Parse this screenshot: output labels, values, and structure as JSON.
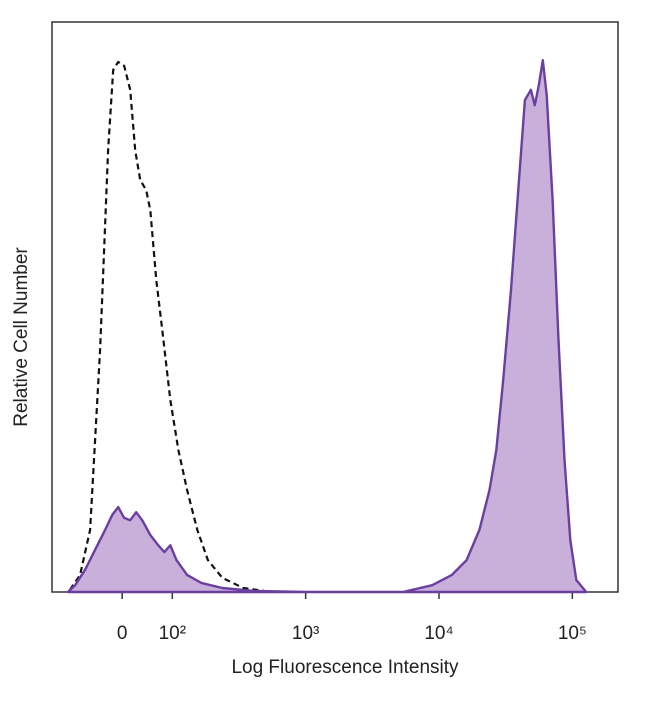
{
  "chart_data": {
    "type": "histogram-overlay",
    "x_label": "Log Fluorescence Intensity",
    "y_label": "Relative Cell Number",
    "xlim": [
      -140,
      220000
    ],
    "ylim": [
      0,
      100
    ],
    "xticks": [
      {
        "value": 0,
        "label": "0"
      },
      {
        "value": 100,
        "label": "10²"
      },
      {
        "value": 1000,
        "label": "10³"
      },
      {
        "value": 10000,
        "label": "10⁴"
      },
      {
        "value": 100000,
        "label": "10⁵"
      }
    ],
    "series": [
      {
        "color": "#6a3fa0",
        "fill": "#c9b0db",
        "line_style": "solid",
        "x": [
          -108,
          -94,
          -74,
          -54,
          -34,
          -20,
          -8,
          4,
          16,
          28,
          40,
          56,
          72,
          84,
          96,
          107.5,
          129,
          165,
          237,
          406,
          1000,
          5370,
          8890,
          12500,
          16100,
          20100,
          23900,
          26900,
          30300,
          34700,
          39800,
          44100,
          48900,
          52300,
          56000,
          60000,
          64200,
          71100,
          78800,
          87300,
          96600,
          107000,
          127000
        ],
        "values": [
          0,
          1.2,
          3.9,
          7.4,
          10.9,
          13.5,
          14.9,
          13,
          12.6,
          14,
          12.6,
          10,
          8.2,
          7,
          8.2,
          5.6,
          3,
          1.6,
          0.7,
          0.2,
          0,
          0,
          1.2,
          3,
          5.6,
          10.9,
          17.9,
          24.9,
          37.2,
          53,
          72.3,
          86.3,
          88.1,
          85.4,
          88.9,
          93.3,
          87.2,
          68.8,
          44.2,
          23.2,
          9.1,
          2.1,
          0
        ]
      },
      {
        "color": "#111111",
        "fill": "none",
        "line_style": "dashed",
        "x": [
          -104,
          -84,
          -64,
          -44,
          -28,
          -18,
          -8,
          4,
          16,
          26,
          36,
          48,
          56,
          68,
          80,
          96,
          111,
          129,
          154,
          185,
          237,
          340,
          487
        ],
        "values": [
          0.4,
          3,
          10.9,
          42.5,
          77.5,
          91.6,
          93,
          92.3,
          88.1,
          77.5,
          72.3,
          70.5,
          67,
          54.7,
          45.9,
          33.7,
          24.9,
          17.9,
          10.9,
          5.6,
          2.5,
          0.7,
          0.2
        ]
      }
    ]
  }
}
